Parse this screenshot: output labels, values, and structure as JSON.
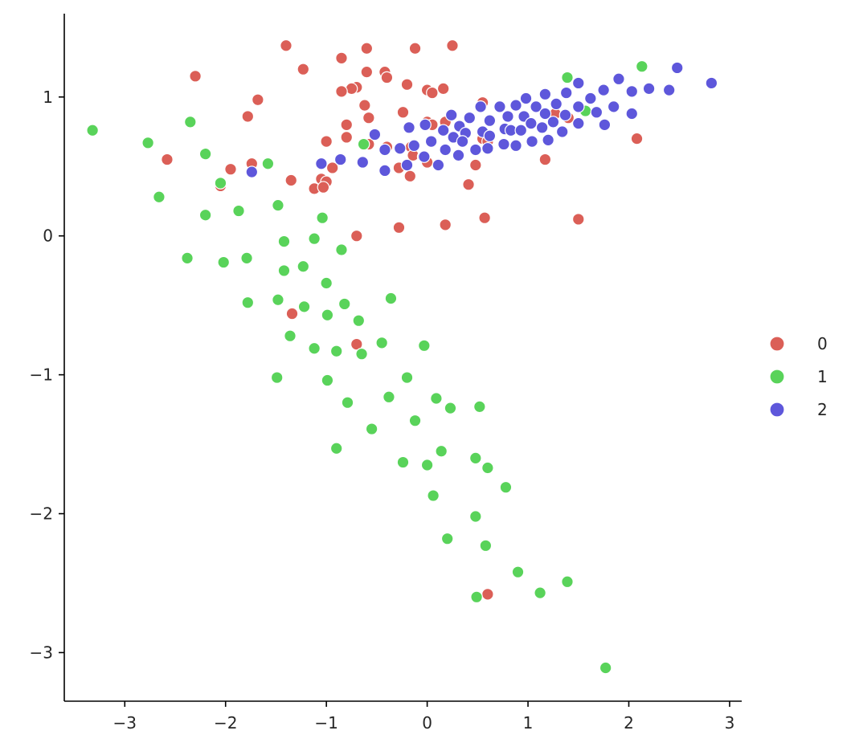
{
  "chart_data": {
    "type": "scatter",
    "title": "",
    "xlabel": "",
    "ylabel": "",
    "xlim": [
      -3.6,
      3.12
    ],
    "ylim": [
      -3.35,
      1.6
    ],
    "xticks": [
      -3,
      -2,
      -1,
      0,
      1,
      2,
      3
    ],
    "yticks": [
      -3,
      -2,
      -1,
      0,
      1
    ],
    "xtick_labels": [
      "−3",
      "−2",
      "−1",
      "0",
      "1",
      "2",
      "3"
    ],
    "ytick_labels": [
      "−3",
      "−2",
      "−1",
      "0",
      "1"
    ],
    "grid": false,
    "legend_position": "right",
    "series": [
      {
        "name": "0",
        "color": "#db5f57",
        "points": [
          [
            -1.4,
            1.37
          ],
          [
            -0.85,
            1.28
          ],
          [
            -0.6,
            1.35
          ],
          [
            -0.12,
            1.35
          ],
          [
            0.25,
            1.37
          ],
          [
            -2.3,
            1.15
          ],
          [
            -1.23,
            1.2
          ],
          [
            -0.42,
            1.18
          ],
          [
            -0.6,
            1.18
          ],
          [
            -0.4,
            1.14
          ],
          [
            -1.68,
            0.98
          ],
          [
            -0.7,
            1.07
          ],
          [
            -0.75,
            1.06
          ],
          [
            -0.2,
            1.09
          ],
          [
            0.16,
            1.06
          ],
          [
            0.0,
            1.05
          ],
          [
            0.05,
            1.03
          ],
          [
            -0.85,
            1.04
          ],
          [
            -0.62,
            0.94
          ],
          [
            -0.24,
            0.89
          ],
          [
            -1.78,
            0.86
          ],
          [
            -0.58,
            0.85
          ],
          [
            -0.8,
            0.8
          ],
          [
            0.0,
            0.82
          ],
          [
            0.05,
            0.8
          ],
          [
            0.18,
            0.82
          ],
          [
            0.55,
            0.96
          ],
          [
            1.27,
            0.88
          ],
          [
            1.4,
            0.85
          ],
          [
            0.55,
            0.7
          ],
          [
            0.6,
            0.68
          ],
          [
            -0.8,
            0.71
          ],
          [
            -1.0,
            0.68
          ],
          [
            -0.58,
            0.66
          ],
          [
            -0.4,
            0.64
          ],
          [
            -0.16,
            0.64
          ],
          [
            -0.14,
            0.58
          ],
          [
            -0.04,
            0.57
          ],
          [
            0.0,
            0.53
          ],
          [
            -0.28,
            0.49
          ],
          [
            -0.94,
            0.49
          ],
          [
            2.08,
            0.7
          ],
          [
            1.17,
            0.55
          ],
          [
            0.48,
            0.51
          ],
          [
            -2.58,
            0.55
          ],
          [
            -1.74,
            0.52
          ],
          [
            -1.95,
            0.48
          ],
          [
            -1.05,
            0.41
          ],
          [
            -1.35,
            0.4
          ],
          [
            -1.0,
            0.39
          ],
          [
            -0.17,
            0.43
          ],
          [
            -1.12,
            0.34
          ],
          [
            -1.03,
            0.35
          ],
          [
            0.41,
            0.37
          ],
          [
            -2.05,
            0.36
          ],
          [
            0.57,
            0.13
          ],
          [
            1.5,
            0.12
          ],
          [
            -0.28,
            0.06
          ],
          [
            0.18,
            0.08
          ],
          [
            -0.7,
            0.0
          ],
          [
            -1.34,
            -0.56
          ],
          [
            -0.7,
            -0.78
          ],
          [
            0.6,
            -2.58
          ]
        ]
      },
      {
        "name": "1",
        "color": "#59d35a",
        "points": [
          [
            -3.32,
            0.76
          ],
          [
            -2.77,
            0.67
          ],
          [
            -2.35,
            0.82
          ],
          [
            -2.2,
            0.59
          ],
          [
            -2.66,
            0.28
          ],
          [
            -2.05,
            0.38
          ],
          [
            -1.58,
            0.52
          ],
          [
            -0.63,
            0.66
          ],
          [
            -1.48,
            0.22
          ],
          [
            -2.2,
            0.15
          ],
          [
            -1.87,
            0.18
          ],
          [
            -1.04,
            0.13
          ],
          [
            -1.42,
            -0.04
          ],
          [
            -1.12,
            -0.02
          ],
          [
            -2.38,
            -0.16
          ],
          [
            -2.02,
            -0.19
          ],
          [
            -1.79,
            -0.16
          ],
          [
            -0.85,
            -0.1
          ],
          [
            -1.23,
            -0.22
          ],
          [
            -1.42,
            -0.25
          ],
          [
            -1.0,
            -0.34
          ],
          [
            -1.78,
            -0.48
          ],
          [
            -1.48,
            -0.46
          ],
          [
            -1.22,
            -0.51
          ],
          [
            -0.82,
            -0.49
          ],
          [
            -0.36,
            -0.45
          ],
          [
            -0.99,
            -0.57
          ],
          [
            -0.68,
            -0.61
          ],
          [
            -1.36,
            -0.72
          ],
          [
            -1.12,
            -0.81
          ],
          [
            -0.9,
            -0.83
          ],
          [
            -0.45,
            -0.77
          ],
          [
            -0.03,
            -0.79
          ],
          [
            -0.65,
            -0.85
          ],
          [
            -1.49,
            -1.02
          ],
          [
            -0.99,
            -1.04
          ],
          [
            -0.2,
            -1.02
          ],
          [
            -0.38,
            -1.16
          ],
          [
            0.09,
            -1.17
          ],
          [
            -0.79,
            -1.2
          ],
          [
            0.23,
            -1.24
          ],
          [
            0.52,
            -1.23
          ],
          [
            -0.12,
            -1.33
          ],
          [
            -0.55,
            -1.39
          ],
          [
            -0.9,
            -1.53
          ],
          [
            0.14,
            -1.55
          ],
          [
            -0.24,
            -1.63
          ],
          [
            0.0,
            -1.65
          ],
          [
            0.48,
            -1.6
          ],
          [
            0.6,
            -1.67
          ],
          [
            0.78,
            -1.81
          ],
          [
            0.06,
            -1.87
          ],
          [
            0.48,
            -2.02
          ],
          [
            0.2,
            -2.18
          ],
          [
            0.58,
            -2.23
          ],
          [
            0.9,
            -2.42
          ],
          [
            1.12,
            -2.57
          ],
          [
            1.39,
            -2.49
          ],
          [
            0.49,
            -2.6
          ],
          [
            1.77,
            -3.11
          ],
          [
            1.39,
            1.14
          ],
          [
            2.13,
            1.22
          ],
          [
            1.57,
            0.9
          ]
        ]
      },
      {
        "name": "2",
        "color": "#5e57db",
        "points": [
          [
            2.48,
            1.21
          ],
          [
            2.82,
            1.1
          ],
          [
            1.9,
            1.13
          ],
          [
            2.2,
            1.06
          ],
          [
            2.4,
            1.05
          ],
          [
            1.5,
            1.1
          ],
          [
            1.75,
            1.05
          ],
          [
            1.62,
            0.99
          ],
          [
            2.03,
            1.04
          ],
          [
            1.38,
            1.03
          ],
          [
            1.17,
            1.02
          ],
          [
            0.98,
            0.99
          ],
          [
            0.88,
            0.94
          ],
          [
            0.72,
            0.93
          ],
          [
            0.53,
            0.93
          ],
          [
            1.08,
            0.93
          ],
          [
            1.28,
            0.95
          ],
          [
            1.5,
            0.93
          ],
          [
            1.85,
            0.93
          ],
          [
            1.68,
            0.89
          ],
          [
            2.03,
            0.88
          ],
          [
            0.24,
            0.87
          ],
          [
            0.42,
            0.85
          ],
          [
            0.8,
            0.86
          ],
          [
            0.96,
            0.86
          ],
          [
            1.17,
            0.88
          ],
          [
            1.37,
            0.87
          ],
          [
            1.5,
            0.81
          ],
          [
            1.76,
            0.8
          ],
          [
            1.25,
            0.82
          ],
          [
            1.03,
            0.81
          ],
          [
            0.62,
            0.83
          ],
          [
            0.32,
            0.79
          ],
          [
            -0.02,
            0.8
          ],
          [
            0.16,
            0.76
          ],
          [
            0.38,
            0.74
          ],
          [
            0.55,
            0.75
          ],
          [
            0.77,
            0.77
          ],
          [
            0.83,
            0.76
          ],
          [
            0.93,
            0.76
          ],
          [
            1.14,
            0.78
          ],
          [
            1.34,
            0.75
          ],
          [
            -0.18,
            0.78
          ],
          [
            -0.52,
            0.73
          ],
          [
            0.26,
            0.71
          ],
          [
            0.35,
            0.68
          ],
          [
            0.62,
            0.72
          ],
          [
            0.76,
            0.66
          ],
          [
            0.88,
            0.65
          ],
          [
            1.04,
            0.68
          ],
          [
            1.2,
            0.69
          ],
          [
            0.04,
            0.68
          ],
          [
            0.18,
            0.62
          ],
          [
            0.48,
            0.62
          ],
          [
            0.6,
            0.63
          ],
          [
            -0.42,
            0.62
          ],
          [
            -0.27,
            0.63
          ],
          [
            -0.13,
            0.65
          ],
          [
            0.31,
            0.58
          ],
          [
            -0.03,
            0.57
          ],
          [
            -0.86,
            0.55
          ],
          [
            -0.64,
            0.53
          ],
          [
            -0.2,
            0.51
          ],
          [
            0.11,
            0.51
          ],
          [
            -0.42,
            0.47
          ],
          [
            -1.05,
            0.52
          ],
          [
            -1.74,
            0.46
          ]
        ]
      }
    ]
  }
}
